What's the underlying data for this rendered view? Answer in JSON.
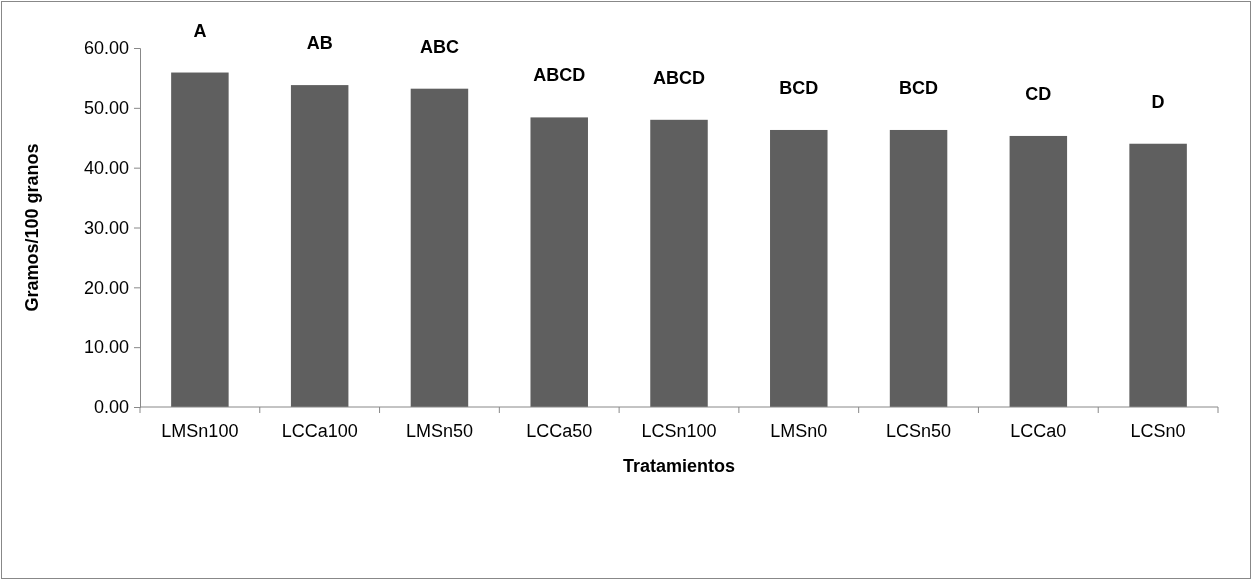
{
  "chart_data": {
    "type": "bar",
    "xlabel": "Tratamientos",
    "ylabel": "Gramos/100 granos",
    "categories": [
      "LMSn100",
      "LCCa100",
      "LMSn50",
      "LCCa50",
      "LCSn100",
      "LMSn0",
      "LCSn50",
      "LCCa0",
      "LCSn0"
    ],
    "values": [
      55.9,
      53.8,
      53.2,
      48.4,
      48.0,
      46.3,
      46.3,
      45.3,
      44.0
    ],
    "color": "#5f5f5f",
    "ylim": [
      0,
      60
    ],
    "yticks": [
      {
        "value": 0,
        "label": "0.00"
      },
      {
        "value": 10,
        "label": "10.00"
      },
      {
        "value": 20,
        "label": "20.00"
      },
      {
        "value": 30,
        "label": "30.00"
      },
      {
        "value": 40,
        "label": "40.00"
      },
      {
        "value": 50,
        "label": "50.00"
      },
      {
        "value": 60,
        "label": "60.00"
      }
    ],
    "grid": false,
    "annotations": [
      "A",
      "AB",
      "ABC",
      "ABCD",
      "ABCD",
      "BCD",
      "BCD",
      "CD",
      "D"
    ]
  }
}
